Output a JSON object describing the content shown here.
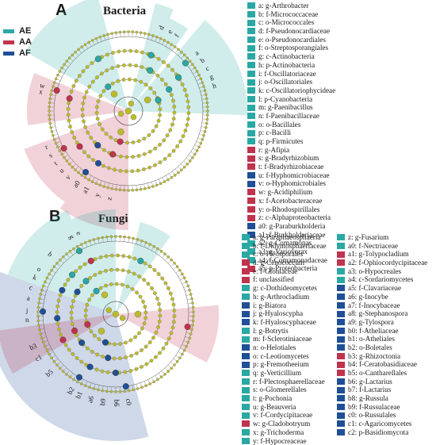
{
  "colors": {
    "AE": "#2aa8a3",
    "AA": "#c0334d",
    "AF": "#1f4f96",
    "node": "#bcbb2a"
  },
  "groups": [
    {
      "label": "AE",
      "color": "#2aa8a3"
    },
    {
      "label": "AA",
      "color": "#c0334d"
    },
    {
      "label": "AF",
      "color": "#1f4f96"
    }
  ],
  "panelA": {
    "letter": "A",
    "title": "Bacteria",
    "key": [
      {
        "text": "a: g-Arthrobacter",
        "group": "AE"
      },
      {
        "text": "b: f-Micrococcaceae",
        "group": "AE"
      },
      {
        "text": "c: o-Micrococcales",
        "group": "AE"
      },
      {
        "text": "d: f-Pseudonocardiaceae",
        "group": "AE"
      },
      {
        "text": "e: o-Pseudonocardiales",
        "group": "AE"
      },
      {
        "text": "f: o-Streptosporangiales",
        "group": "AE"
      },
      {
        "text": "g: c-Actinobacteria",
        "group": "AE"
      },
      {
        "text": "h: p-Actinobacteria",
        "group": "AE"
      },
      {
        "text": "i: f-Oscillatoriaceae",
        "group": "AE"
      },
      {
        "text": "j: o-Oscillatoriales",
        "group": "AE"
      },
      {
        "text": "k: c-Oscillatoriophycideae",
        "group": "AE"
      },
      {
        "text": "l: p-Cyanobacteria",
        "group": "AE"
      },
      {
        "text": "m: g-Paenibacillus",
        "group": "AE"
      },
      {
        "text": "n: f-Paenibacillaceae",
        "group": "AE"
      },
      {
        "text": "o: o-Bacillales",
        "group": "AE"
      },
      {
        "text": "p: c-Bacilli",
        "group": "AE"
      },
      {
        "text": "q: p-Firmicutes",
        "group": "AE"
      },
      {
        "text": "r: g-Afipia",
        "group": "AA"
      },
      {
        "text": "s: g-Bradyrhizobium",
        "group": "AA"
      },
      {
        "text": "t: f-Bradyrhizobiaceae",
        "group": "AA"
      },
      {
        "text": "u: f-Hyphomicrobiaceae",
        "group": "AF"
      },
      {
        "text": "v: o-Hyphomicrobiales",
        "group": "AF"
      },
      {
        "text": "w: g-Acidiphilium",
        "group": "AA"
      },
      {
        "text": "x: f-Acetobacteraceae",
        "group": "AA"
      },
      {
        "text": "y: o-Rhodospirillales",
        "group": "AA"
      },
      {
        "text": "z: c-Alphaproteobacteria",
        "group": "AA"
      },
      {
        "text": "a0: g-Paraburkholderia",
        "group": "AF"
      },
      {
        "text": "a1: f-Burkholderiaceae",
        "group": "AF"
      },
      {
        "text": "a2: g-Comamonas",
        "group": "AE"
      },
      {
        "text": "a3: g-Variovorax",
        "group": "AE"
      },
      {
        "text": "a4: f-Comamonadaceae",
        "group": "AE"
      },
      {
        "text": "a5: p-Proteobacteria",
        "group": "AA"
      }
    ],
    "labels": [
      {
        "t": "a",
        "a": 50
      },
      {
        "t": "b",
        "a": 56
      },
      {
        "t": "c",
        "a": 62
      },
      {
        "t": "e",
        "a": 28
      },
      {
        "t": "f",
        "a": 33
      },
      {
        "t": "d",
        "a": 22
      },
      {
        "t": "g",
        "a": 68
      },
      {
        "t": "h",
        "a": 74
      },
      {
        "t": "w",
        "a": 286
      },
      {
        "t": "x",
        "a": 282
      },
      {
        "t": "r",
        "a": 246
      },
      {
        "t": "s",
        "a": 240
      },
      {
        "t": "t",
        "a": 234
      },
      {
        "t": "a0",
        "a": 215
      },
      {
        "t": "a1",
        "a": 208
      },
      {
        "t": "y",
        "a": 200
      },
      {
        "t": "z",
        "a": 192
      },
      {
        "t": "u",
        "a": 228
      },
      {
        "t": "v",
        "a": 222
      }
    ]
  },
  "panelB": {
    "letter": "B",
    "title": "Fungi",
    "key_col1": [
      {
        "text": "a: g-Paraphaeosphaeria",
        "group": "AE"
      },
      {
        "text": "b: f-Didymosphaeriaceae",
        "group": "AE"
      },
      {
        "text": "c: o-Pleosporales",
        "group": "AE"
      },
      {
        "text": "d: g-Cenococcum",
        "group": "AA"
      },
      {
        "text": "e: f-Gloniaceae",
        "group": "AA"
      },
      {
        "text": "f: unclassified",
        "group": "AA"
      },
      {
        "text": "g: c-Dothideomycetes",
        "group": "AE"
      },
      {
        "text": "h: g-Arthrocladium",
        "group": "AE"
      },
      {
        "text": "i: g-Biatora",
        "group": "AF"
      },
      {
        "text": "j: g-Hyaloscypha",
        "group": "AF"
      },
      {
        "text": "k: f-Hyaloscyphaceae",
        "group": "AF"
      },
      {
        "text": "l: g-Botrytis",
        "group": "AE"
      },
      {
        "text": "m: f-Sclerotiniaceae",
        "group": "AE"
      },
      {
        "text": "n: o-Helotiales",
        "group": "AF"
      },
      {
        "text": "o: c-Leotiomycetes",
        "group": "AF"
      },
      {
        "text": "p: g-Fremotheeium",
        "group": "AF"
      },
      {
        "text": "q: g-Verticillium",
        "group": "AE"
      },
      {
        "text": "r: f-Plectosphaerellaceae",
        "group": "AE"
      },
      {
        "text": "s: o-Glomerellales",
        "group": "AE"
      },
      {
        "text": "t: g-Pochonia",
        "group": "AE"
      },
      {
        "text": "u: g-Beauveria",
        "group": "AE"
      },
      {
        "text": "v: f-Cordycipitaceae",
        "group": "AE"
      },
      {
        "text": "w: g-Cladobotryum",
        "group": "AA"
      },
      {
        "text": "x: g-Trichoderma",
        "group": "AE"
      },
      {
        "text": "y: f-Hypocreaceae",
        "group": "AE"
      }
    ],
    "key_col2": [
      {
        "text": "z: g-Fusarium",
        "group": "AE"
      },
      {
        "text": "a0: f-Nectriaceae",
        "group": "AE"
      },
      {
        "text": "a1: g-Tolypocladium",
        "group": "AA"
      },
      {
        "text": "a2: f-Ophiocordycipitaceae",
        "group": "AA"
      },
      {
        "text": "a3: o-Hypocreales",
        "group": "AE"
      },
      {
        "text": "a4: c-Sordariomycetes",
        "group": "AE"
      },
      {
        "text": "a5: f-Clavariaceae",
        "group": "AF"
      },
      {
        "text": "a6: g-Inocybe",
        "group": "AF"
      },
      {
        "text": "a7: f-Inocybaceae",
        "group": "AF"
      },
      {
        "text": "a8: g-Stephanospora",
        "group": "AF"
      },
      {
        "text": "a9: g-Tylospora",
        "group": "AF"
      },
      {
        "text": "b0: f-Atheliaceae",
        "group": "AF"
      },
      {
        "text": "b1: o-Atheliales",
        "group": "AF"
      },
      {
        "text": "b2: o-Boletales",
        "group": "AF"
      },
      {
        "text": "b3: g-Rhizoctonia",
        "group": "AA"
      },
      {
        "text": "b4: f-Ceratobasidiaceae",
        "group": "AA"
      },
      {
        "text": "b5: o-Cantharellales",
        "group": "AA"
      },
      {
        "text": "b6: g-Lactarius",
        "group": "AF"
      },
      {
        "text": "b7: f-Lactarius",
        "group": "AF"
      },
      {
        "text": "b8: g-Russula",
        "group": "AF"
      },
      {
        "text": "b9: f-Russulaceae",
        "group": "AF"
      },
      {
        "text": "c0: o-Russulales",
        "group": "AF"
      },
      {
        "text": "c1: c-Agaricomycetes",
        "group": "AF"
      },
      {
        "text": "c2: p-Basidiomycota",
        "group": "AF"
      }
    ],
    "labels": [
      {
        "t": "g",
        "a": 330
      },
      {
        "t": "e",
        "a": 335
      },
      {
        "t": "b",
        "a": 312
      },
      {
        "t": "o",
        "a": 300
      },
      {
        "t": "k",
        "a": 294
      },
      {
        "t": "c",
        "a": 287
      },
      {
        "t": "a",
        "a": 280
      },
      {
        "t": "j",
        "a": 272
      },
      {
        "t": "n",
        "a": 266
      },
      {
        "t": "b3",
        "a": 248
      },
      {
        "t": "c1",
        "a": 240
      },
      {
        "t": "b5",
        "a": 228
      },
      {
        "t": "b2",
        "a": 210
      },
      {
        "t": "b1",
        "a": 204
      },
      {
        "t": "a6",
        "a": 196
      },
      {
        "t": "b9",
        "a": 188
      },
      {
        "t": "b6",
        "a": 180
      },
      {
        "t": "c0",
        "a": 172
      }
    ]
  }
}
